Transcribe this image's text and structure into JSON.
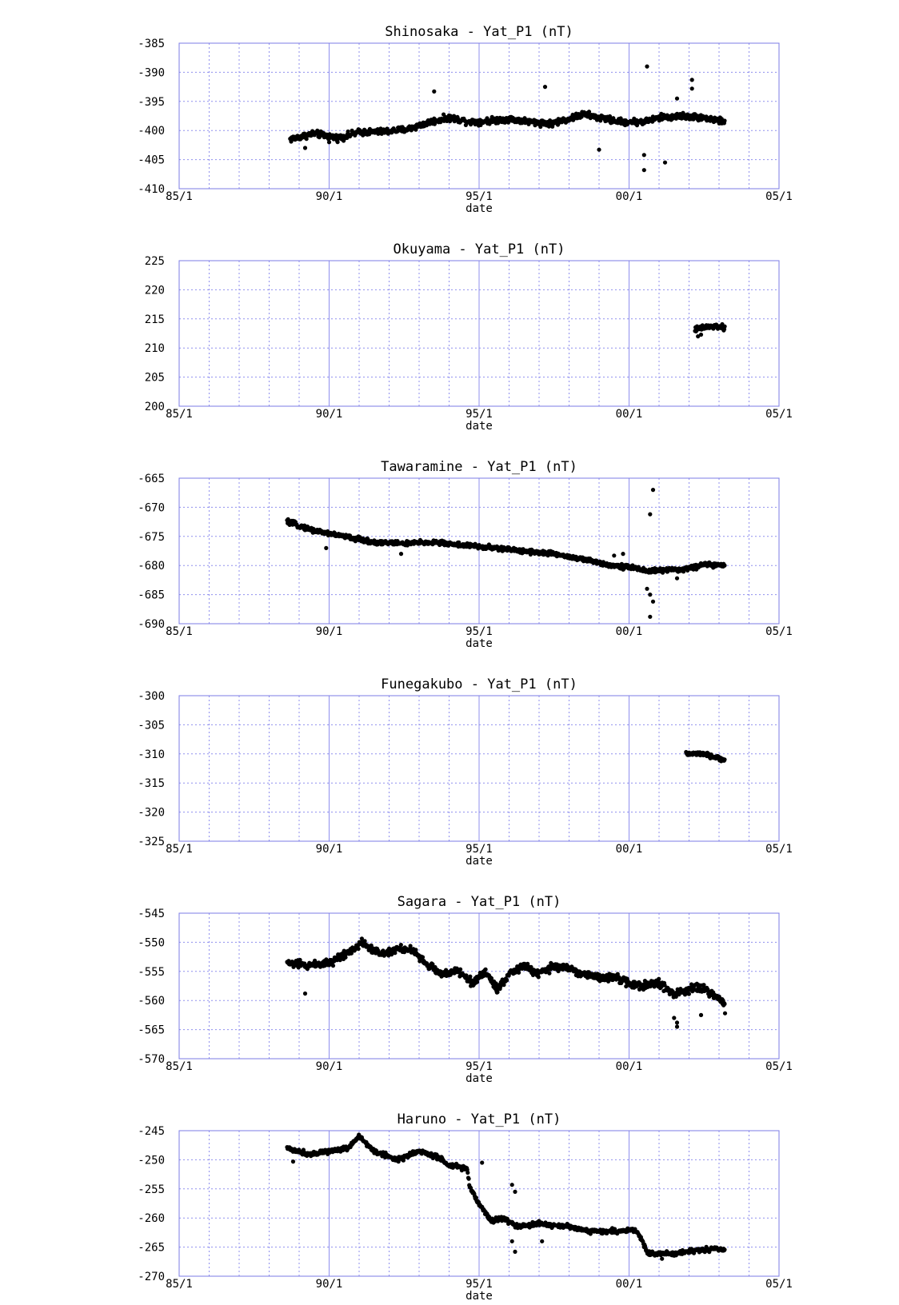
{
  "colors": {
    "frame": "#7b7be6",
    "grid": "#8f8fee",
    "point": "#000000",
    "background": "#ffffff"
  },
  "charts": [
    {
      "type": "scatter",
      "title": "Shinosaka - Yat_P1 (nT)",
      "xlabel": "date",
      "x_ticks": [
        "85/1",
        "90/1",
        "95/1",
        "00/1",
        "05/1"
      ],
      "y_ticks": [
        "-385",
        "-390",
        "-395",
        "-400",
        "-405",
        "-410"
      ],
      "xlim": [
        1985.0,
        2005.0
      ],
      "ylim": [
        -410,
        -385
      ],
      "grid": true,
      "series": [
        {
          "color": "#000000",
          "trend": [
            [
              1988.7,
              -401.5
            ],
            [
              1989.5,
              -400.5
            ],
            [
              1990.3,
              -401.3
            ],
            [
              1991.0,
              -400.3
            ],
            [
              1991.8,
              -400.2
            ],
            [
              1992.6,
              -399.8
            ],
            [
              1993.4,
              -398.5
            ],
            [
              1994.0,
              -397.8
            ],
            [
              1994.7,
              -398.5
            ],
            [
              1995.2,
              -398.4
            ],
            [
              1996.0,
              -398.0
            ],
            [
              1996.7,
              -398.5
            ],
            [
              1997.4,
              -398.8
            ],
            [
              1998.0,
              -398.0
            ],
            [
              1998.5,
              -397.2
            ],
            [
              1999.0,
              -397.8
            ],
            [
              1999.7,
              -398.5
            ],
            [
              2000.5,
              -398.5
            ],
            [
              2001.0,
              -397.8
            ],
            [
              2001.8,
              -397.5
            ],
            [
              2002.5,
              -397.8
            ],
            [
              2003.2,
              -398.5
            ]
          ],
          "noise": 0.8,
          "outliers": [
            [
              1993.5,
              -393.3
            ],
            [
              1997.2,
              -392.5
            ],
            [
              1999.0,
              -403.3
            ],
            [
              2000.6,
              -389.0
            ],
            [
              2000.5,
              -404.2
            ],
            [
              2000.5,
              -406.8
            ],
            [
              2001.2,
              -405.5
            ],
            [
              2001.6,
              -394.5
            ],
            [
              2002.1,
              -391.3
            ],
            [
              2002.1,
              -392.8
            ],
            [
              1990.0,
              -402.0
            ],
            [
              1989.2,
              -403.0
            ]
          ]
        }
      ]
    },
    {
      "type": "scatter",
      "title": "Okuyama - Yat_P1 (nT)",
      "xlabel": "date",
      "x_ticks": [
        "85/1",
        "90/1",
        "95/1",
        "00/1",
        "05/1"
      ],
      "y_ticks": [
        "225",
        "220",
        "215",
        "210",
        "205",
        "200"
      ],
      "xlim": [
        1985.0,
        2005.0
      ],
      "ylim": [
        200,
        225
      ],
      "grid": true,
      "series": [
        {
          "color": "#000000",
          "trend": [
            [
              2002.2,
              213.2
            ],
            [
              2002.6,
              213.6
            ],
            [
              2003.0,
              213.7
            ],
            [
              2003.2,
              213.3
            ]
          ],
          "noise": 0.7,
          "outliers": [
            [
              2002.3,
              212.0
            ],
            [
              2002.4,
              212.3
            ]
          ]
        }
      ]
    },
    {
      "type": "scatter",
      "title": "Tawaramine - Yat_P1 (nT)",
      "xlabel": "date",
      "x_ticks": [
        "85/1",
        "90/1",
        "95/1",
        "00/1",
        "05/1"
      ],
      "y_ticks": [
        "-665",
        "-670",
        "-675",
        "-680",
        "-685",
        "-690"
      ],
      "xlim": [
        1985.0,
        2005.0
      ],
      "ylim": [
        -690,
        -665
      ],
      "grid": true,
      "series": [
        {
          "color": "#000000",
          "trend": [
            [
              1988.6,
              -672.5
            ],
            [
              1989.5,
              -674.0
            ],
            [
              1990.5,
              -675.0
            ],
            [
              1991.5,
              -676.0
            ],
            [
              1992.5,
              -676.2
            ],
            [
              1993.5,
              -676.0
            ],
            [
              1994.5,
              -676.5
            ],
            [
              1995.5,
              -677.0
            ],
            [
              1996.5,
              -677.5
            ],
            [
              1997.5,
              -678.0
            ],
            [
              1998.5,
              -679.0
            ],
            [
              1999.5,
              -680.0
            ],
            [
              2000.3,
              -680.5
            ],
            [
              2000.6,
              -681.0
            ],
            [
              2001.0,
              -680.8
            ],
            [
              2001.5,
              -680.8
            ],
            [
              2002.0,
              -680.5
            ],
            [
              2002.5,
              -679.8
            ],
            [
              2003.2,
              -680.0
            ]
          ],
          "noise": 0.6,
          "outliers": [
            [
              2000.8,
              -667.0
            ],
            [
              2000.7,
              -671.2
            ],
            [
              2000.7,
              -685.0
            ],
            [
              2000.8,
              -686.2
            ],
            [
              2000.7,
              -688.8
            ],
            [
              2000.6,
              -684.0
            ],
            [
              1999.5,
              -678.3
            ],
            [
              1999.8,
              -678.0
            ],
            [
              1989.9,
              -677.0
            ],
            [
              1992.4,
              -678.0
            ],
            [
              2001.6,
              -682.2
            ]
          ]
        }
      ]
    },
    {
      "type": "scatter",
      "title": "Funegakubo - Yat_P1 (nT)",
      "xlabel": "date",
      "x_ticks": [
        "85/1",
        "90/1",
        "95/1",
        "00/1",
        "05/1"
      ],
      "y_ticks": [
        "-300",
        "-305",
        "-310",
        "-315",
        "-320",
        "-325"
      ],
      "xlim": [
        1985.0,
        2005.0
      ],
      "ylim": [
        -325,
        -300
      ],
      "grid": true,
      "series": [
        {
          "color": "#000000",
          "trend": [
            [
              2001.9,
              -310.0
            ],
            [
              2002.4,
              -310.0
            ],
            [
              2002.8,
              -310.5
            ],
            [
              2003.2,
              -311.0
            ]
          ],
          "noise": 0.5,
          "outliers": []
        }
      ]
    },
    {
      "type": "scatter",
      "title": "Sagara - Yat_P1 (nT)",
      "xlabel": "date",
      "x_ticks": [
        "85/1",
        "90/1",
        "95/1",
        "00/1",
        "05/1"
      ],
      "y_ticks": [
        "-545",
        "-550",
        "-555",
        "-560",
        "-565",
        "-570"
      ],
      "xlim": [
        1985.0,
        2005.0
      ],
      "ylim": [
        -570,
        -545
      ],
      "grid": true,
      "series": [
        {
          "color": "#000000",
          "trend": [
            [
              1988.6,
              -553.5
            ],
            [
              1989.3,
              -554.0
            ],
            [
              1990.0,
              -553.5
            ],
            [
              1990.7,
              -551.5
            ],
            [
              1991.1,
              -550.0
            ],
            [
              1991.7,
              -552.0
            ],
            [
              1992.3,
              -551.0
            ],
            [
              1992.8,
              -551.5
            ],
            [
              1993.3,
              -554.0
            ],
            [
              1993.8,
              -555.5
            ],
            [
              1994.3,
              -555.0
            ],
            [
              1994.8,
              -557.0
            ],
            [
              1995.2,
              -555.0
            ],
            [
              1995.6,
              -558.0
            ],
            [
              1996.0,
              -555.5
            ],
            [
              1996.5,
              -554.0
            ],
            [
              1997.0,
              -555.5
            ],
            [
              1997.5,
              -554.0
            ],
            [
              1998.0,
              -554.5
            ],
            [
              1998.5,
              -555.5
            ],
            [
              1999.0,
              -556.0
            ],
            [
              1999.5,
              -556.0
            ],
            [
              2000.0,
              -557.0
            ],
            [
              2000.5,
              -557.5
            ],
            [
              2001.0,
              -557.0
            ],
            [
              2001.5,
              -559.0
            ],
            [
              2002.0,
              -558.0
            ],
            [
              2002.5,
              -558.0
            ],
            [
              2003.2,
              -560.5
            ]
          ],
          "noise": 1.0,
          "outliers": [
            [
              2001.5,
              -563.0
            ],
            [
              2001.6,
              -564.5
            ],
            [
              2001.6,
              -563.8
            ],
            [
              2003.2,
              -562.2
            ],
            [
              2002.4,
              -562.5
            ],
            [
              1989.2,
              -558.8
            ]
          ]
        }
      ]
    },
    {
      "type": "scatter",
      "title": "Haruno - Yat_P1 (nT)",
      "xlabel": "date",
      "x_ticks": [
        "85/1",
        "90/1",
        "95/1",
        "00/1",
        "05/1"
      ],
      "y_ticks": [
        "-245",
        "-250",
        "-255",
        "-260",
        "-265",
        "-270"
      ],
      "xlim": [
        1985.0,
        2005.0
      ],
      "ylim": [
        -270,
        -245
      ],
      "grid": true,
      "series": [
        {
          "color": "#000000",
          "trend": [
            [
              1988.6,
              -248.0
            ],
            [
              1989.3,
              -249.0
            ],
            [
              1990.0,
              -248.5
            ],
            [
              1990.6,
              -248.0
            ],
            [
              1991.0,
              -246.0
            ],
            [
              1991.5,
              -248.5
            ],
            [
              1992.3,
              -250.0
            ],
            [
              1993.0,
              -248.5
            ],
            [
              1993.6,
              -249.5
            ],
            [
              1994.0,
              -251.0
            ],
            [
              1994.6,
              -251.5
            ],
            [
              1994.7,
              -255.0
            ],
            [
              1995.0,
              -257.5
            ],
            [
              1995.4,
              -260.5
            ],
            [
              1995.8,
              -260.0
            ],
            [
              1996.3,
              -261.5
            ],
            [
              1997.0,
              -261.0
            ],
            [
              1998.0,
              -261.5
            ],
            [
              1998.8,
              -262.3
            ],
            [
              1999.5,
              -262.3
            ],
            [
              2000.2,
              -262.0
            ],
            [
              2000.4,
              -263.5
            ],
            [
              2000.6,
              -266.0
            ],
            [
              2001.5,
              -266.2
            ],
            [
              2002.2,
              -265.5
            ],
            [
              2003.2,
              -265.3
            ]
          ],
          "noise": 0.6,
          "outliers": [
            [
              1995.1,
              -250.5
            ],
            [
              1996.1,
              -254.3
            ],
            [
              1996.2,
              -255.5
            ],
            [
              1996.1,
              -264.0
            ],
            [
              1996.2,
              -265.8
            ],
            [
              1997.1,
              -264.0
            ],
            [
              2001.1,
              -267.0
            ],
            [
              1988.8,
              -250.3
            ]
          ]
        }
      ]
    }
  ]
}
